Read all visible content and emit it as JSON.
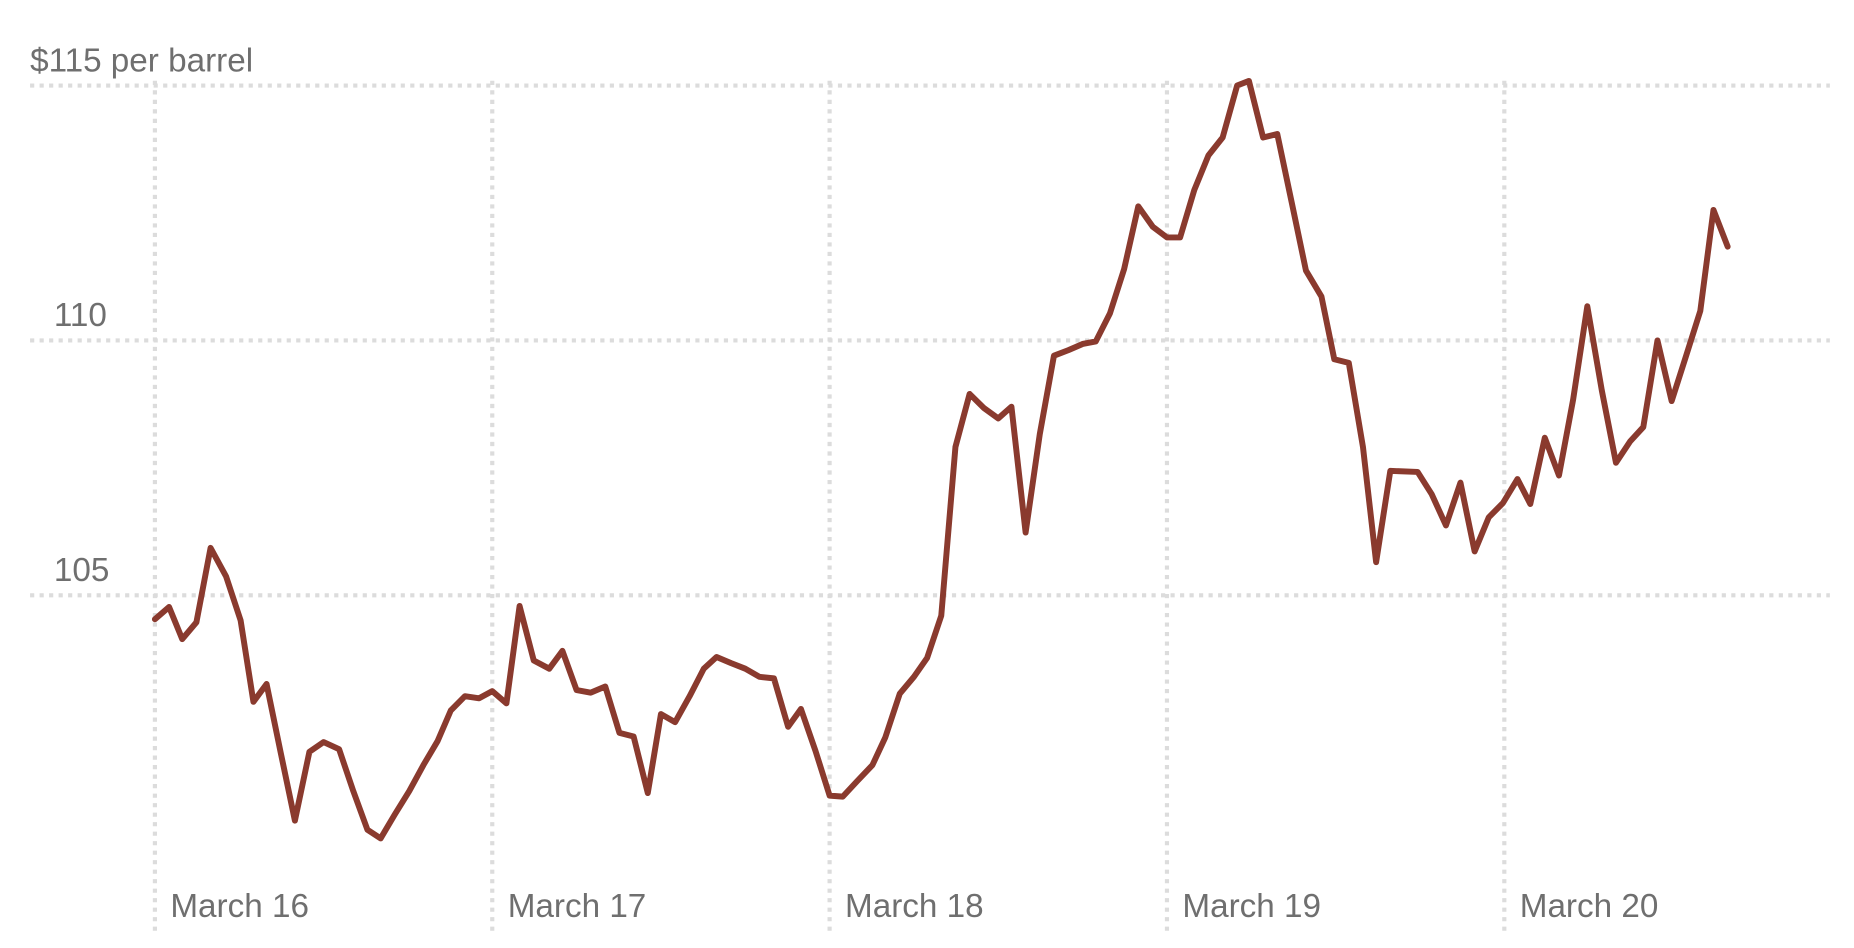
{
  "chart_data": {
    "type": "line",
    "x": [
      0.0,
      0.042,
      0.081,
      0.123,
      0.165,
      0.211,
      0.254,
      0.292,
      0.331,
      0.373,
      0.415,
      0.458,
      0.5,
      0.546,
      0.588,
      0.63,
      0.669,
      0.711,
      0.754,
      0.796,
      0.838,
      0.877,
      0.919,
      0.961,
      1.0,
      1.042,
      1.081,
      1.123,
      1.169,
      1.208,
      1.25,
      1.292,
      1.335,
      1.377,
      1.419,
      1.461,
      1.5,
      1.542,
      1.585,
      1.627,
      1.665,
      1.708,
      1.75,
      1.792,
      1.835,
      1.877,
      1.915,
      1.958,
      2.0,
      2.039,
      2.081,
      2.127,
      2.165,
      2.208,
      2.25,
      2.289,
      2.331,
      2.373,
      2.415,
      2.458,
      2.5,
      2.539,
      2.581,
      2.623,
      2.665,
      2.708,
      2.75,
      2.789,
      2.831,
      2.873,
      2.915,
      2.958,
      3.0,
      3.039,
      3.081,
      3.123,
      3.165,
      3.208,
      3.243,
      3.285,
      3.327,
      3.37,
      3.412,
      3.458,
      3.496,
      3.539,
      3.581,
      3.62,
      3.662,
      3.743,
      3.785,
      3.827,
      3.87,
      3.912,
      3.954,
      3.996,
      4.039,
      4.077,
      4.12,
      4.162,
      4.204,
      4.246,
      4.289,
      4.331,
      4.373,
      4.412,
      4.454,
      4.496,
      4.539,
      4.581,
      4.62,
      4.662
    ],
    "series": [
      {
        "color": "#8a3a2e",
        "values": [
          104.53,
          104.77,
          104.14,
          104.47,
          105.93,
          105.37,
          104.51,
          102.91,
          103.26,
          101.91,
          100.58,
          101.93,
          102.12,
          101.98,
          101.16,
          100.4,
          100.23,
          100.7,
          101.16,
          101.67,
          102.14,
          102.74,
          103.02,
          102.98,
          103.12,
          102.88,
          104.79,
          103.72,
          103.56,
          103.91,
          103.14,
          103.09,
          103.21,
          102.3,
          102.23,
          101.12,
          102.67,
          102.51,
          103.02,
          103.56,
          103.79,
          103.67,
          103.56,
          103.4,
          103.37,
          102.42,
          102.77,
          101.95,
          101.07,
          101.05,
          101.35,
          101.67,
          102.21,
          103.07,
          103.4,
          103.77,
          104.6,
          107.91,
          108.95,
          108.67,
          108.47,
          108.7,
          106.23,
          108.16,
          109.7,
          109.81,
          109.93,
          109.98,
          110.53,
          111.4,
          112.63,
          112.23,
          112.02,
          112.02,
          112.95,
          113.63,
          113.98,
          115.0,
          115.09,
          113.98,
          114.05,
          112.7,
          111.37,
          110.86,
          109.63,
          109.56,
          107.91,
          105.65,
          107.44,
          107.42,
          106.98,
          106.37,
          107.21,
          105.86,
          106.53,
          106.81,
          107.28,
          106.79,
          108.09,
          107.35,
          108.84,
          110.67,
          109.02,
          107.6,
          108.02,
          108.3,
          110.0,
          108.81,
          109.7,
          110.58,
          112.56,
          111.84
        ]
      }
    ],
    "xlim": [
      -0.37,
      4.965
    ],
    "xticks": [
      {
        "value": 0,
        "label": "March 16"
      },
      {
        "value": 1,
        "label": "March 17"
      },
      {
        "value": 2,
        "label": "March 18"
      },
      {
        "value": 3,
        "label": "March 19"
      },
      {
        "value": 4,
        "label": "March 20"
      }
    ],
    "ylim": [
      98.5,
      115
    ],
    "yticks": [
      {
        "value": 115,
        "label": "$115 per barrel"
      },
      110,
      105
    ],
    "grid": true
  }
}
